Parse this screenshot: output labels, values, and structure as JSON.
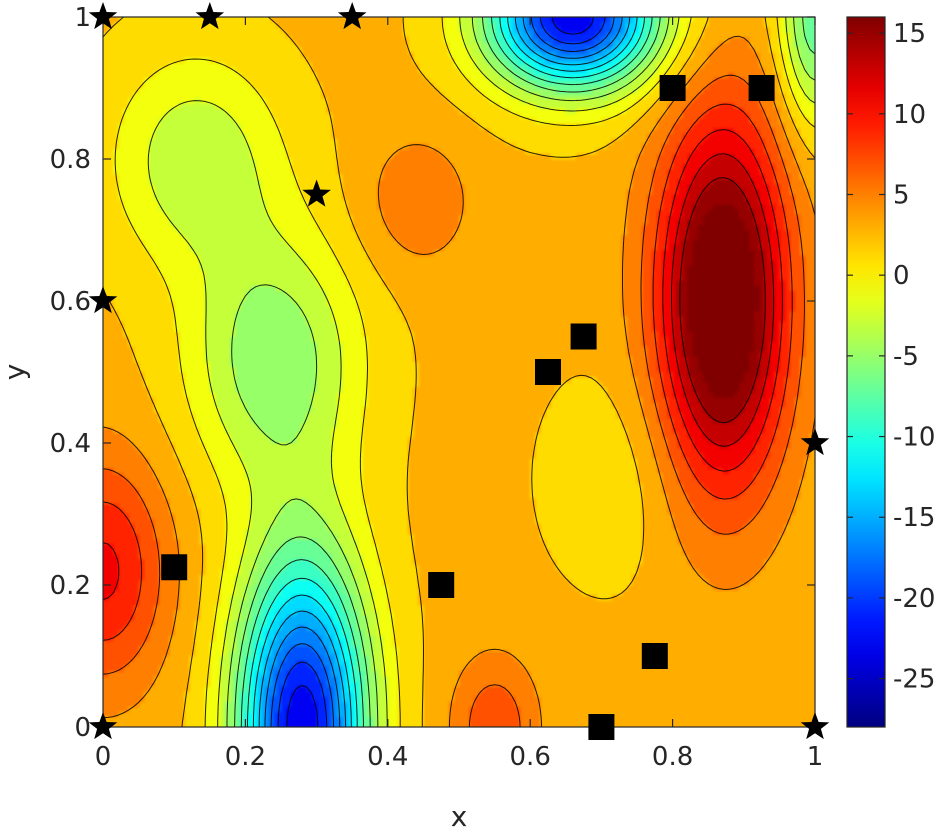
{
  "chart_data": {
    "type": "contour",
    "xlabel": "x",
    "ylabel": "y",
    "xlim": [
      0,
      1
    ],
    "ylim": [
      0,
      1
    ],
    "x_ticks": [
      "0",
      "0.2",
      "0.4",
      "0.6",
      "0.8",
      "1"
    ],
    "y_ticks": [
      "0",
      "0.2",
      "0.4",
      "0.6",
      "0.8",
      "1"
    ],
    "colorbar": {
      "colormap": "jet",
      "range": [
        -28,
        16
      ],
      "ticks": [
        "15",
        "10",
        "5",
        "0",
        "-5",
        "-10",
        "-15",
        "-20",
        "-25"
      ]
    },
    "field_features": [
      {
        "kind": "maximum",
        "x": 0.87,
        "y": 0.62,
        "value": 16
      },
      {
        "kind": "minimum",
        "x": 0.28,
        "y": 0.0,
        "value": -28
      },
      {
        "kind": "minimum",
        "x": 0.66,
        "y": 1.0,
        "value": -26
      },
      {
        "kind": "local_maximum",
        "x": 0.0,
        "y": 0.2,
        "value": 7
      },
      {
        "kind": "local_maximum",
        "x": 0.44,
        "y": 0.74,
        "value": 4
      },
      {
        "kind": "local_maximum",
        "x": 0.55,
        "y": 0.0,
        "value": 6
      }
    ],
    "series": [
      {
        "marker": "star",
        "color": "#000000",
        "points": [
          [
            0,
            1
          ],
          [
            0.15,
            1
          ],
          [
            0.35,
            1
          ],
          [
            0.3,
            0.75
          ],
          [
            0,
            0.6
          ],
          [
            1,
            0.4
          ],
          [
            0,
            0
          ],
          [
            1,
            0
          ]
        ]
      },
      {
        "marker": "square",
        "color": "#000000",
        "points": [
          [
            0.8,
            0.9
          ],
          [
            0.925,
            0.9
          ],
          [
            0.675,
            0.55
          ],
          [
            0.625,
            0.5
          ],
          [
            0.1,
            0.225
          ],
          [
            0.475,
            0.2
          ],
          [
            0.775,
            0.1
          ],
          [
            0.7,
            0.0
          ]
        ]
      }
    ]
  }
}
